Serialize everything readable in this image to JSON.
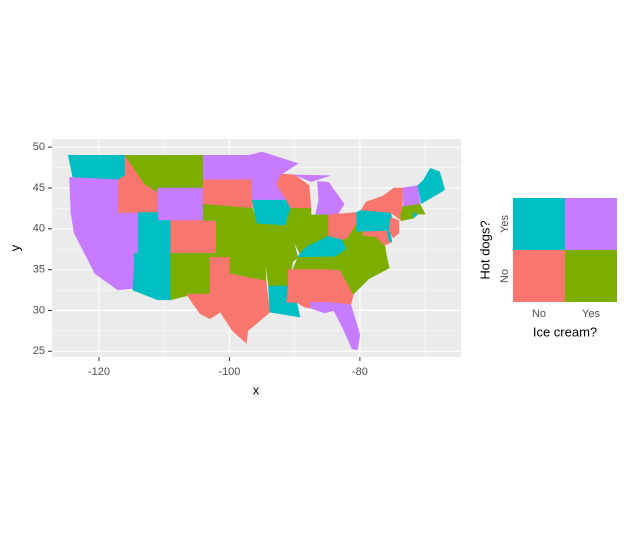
{
  "chart_data": {
    "type": "map",
    "x_label": "x",
    "y_label": "y",
    "xlim": [
      -127.2,
      -64.5
    ],
    "ylim": [
      24.3,
      51.0
    ],
    "xticks": [
      -120,
      -100,
      -80
    ],
    "yticks": [
      25,
      30,
      35,
      40,
      45,
      50
    ],
    "grid": true,
    "legend": {
      "x_title": "Ice cream?",
      "y_title": "Hot dogs?",
      "x_levels": [
        "No",
        "Yes"
      ],
      "y_levels": [
        "No",
        "Yes"
      ],
      "colors": [
        [
          "#F8766D",
          "#7CAE00"
        ],
        [
          "#00BFC4",
          "#C77CFF"
        ]
      ]
    }
  }
}
